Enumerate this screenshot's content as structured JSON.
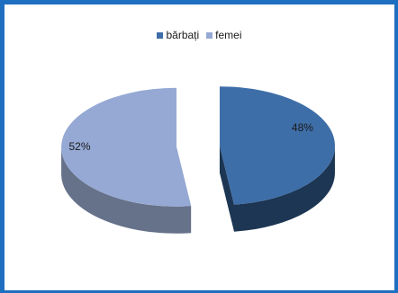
{
  "chart_data": {
    "type": "pie",
    "style": "3d-exploded",
    "title": "",
    "slices": [
      {
        "name": "bărbați",
        "value": 48,
        "label": "48%",
        "color": "#3e6ea8",
        "side_color": "#1c3653"
      },
      {
        "name": "femei",
        "value": 52,
        "label": "52%",
        "color": "#95a9d4",
        "side_color": "#66718a"
      }
    ],
    "legend": {
      "position": "top"
    }
  }
}
